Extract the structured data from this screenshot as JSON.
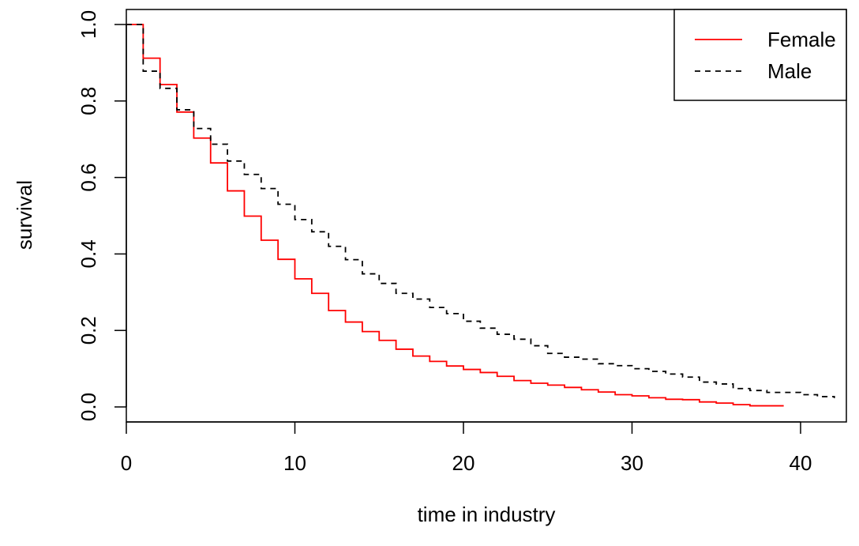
{
  "chart_data": {
    "type": "line",
    "title": "",
    "xlabel": "time in industry",
    "ylabel": "survival",
    "xlim": [
      0,
      42
    ],
    "ylim": [
      0,
      1
    ],
    "x_ticks": [
      0,
      10,
      20,
      30,
      40
    ],
    "y_ticks": [
      "0.0",
      "0.2",
      "0.4",
      "0.6",
      "0.8",
      "1.0"
    ],
    "grid": false,
    "legend_position": "top-right",
    "step": true,
    "series": [
      {
        "name": "Female",
        "color": "#ff0000",
        "style": "solid",
        "x": [
          0,
          1,
          2,
          3,
          4,
          5,
          6,
          7,
          8,
          9,
          10,
          11,
          12,
          13,
          14,
          15,
          16,
          17,
          18,
          19,
          20,
          21,
          22,
          23,
          24,
          25,
          26,
          27,
          28,
          29,
          30,
          31,
          32,
          33,
          34,
          35,
          36,
          37,
          38,
          39
        ],
        "y": [
          1.0,
          0.912,
          0.843,
          0.771,
          0.703,
          0.638,
          0.565,
          0.499,
          0.436,
          0.386,
          0.335,
          0.297,
          0.252,
          0.222,
          0.197,
          0.174,
          0.151,
          0.133,
          0.119,
          0.107,
          0.098,
          0.09,
          0.08,
          0.069,
          0.062,
          0.057,
          0.051,
          0.045,
          0.039,
          0.032,
          0.029,
          0.024,
          0.02,
          0.019,
          0.013,
          0.01,
          0.006,
          0.003,
          0.003,
          0.003
        ]
      },
      {
        "name": "Male",
        "color": "#000000",
        "style": "dashed",
        "x": [
          0,
          1,
          2,
          3,
          4,
          5,
          6,
          7,
          8,
          9,
          10,
          11,
          12,
          13,
          14,
          15,
          16,
          17,
          18,
          19,
          20,
          21,
          22,
          23,
          24,
          25,
          26,
          27,
          28,
          29,
          30,
          31,
          32,
          33,
          34,
          35,
          36,
          37,
          38,
          39,
          40,
          41,
          42
        ],
        "y": [
          1.0,
          0.878,
          0.833,
          0.777,
          0.728,
          0.687,
          0.643,
          0.608,
          0.571,
          0.53,
          0.49,
          0.458,
          0.42,
          0.385,
          0.348,
          0.323,
          0.297,
          0.282,
          0.26,
          0.244,
          0.224,
          0.206,
          0.19,
          0.177,
          0.16,
          0.14,
          0.13,
          0.125,
          0.113,
          0.108,
          0.1,
          0.093,
          0.086,
          0.078,
          0.065,
          0.06,
          0.048,
          0.043,
          0.038,
          0.038,
          0.032,
          0.027,
          0.023
        ]
      }
    ]
  }
}
